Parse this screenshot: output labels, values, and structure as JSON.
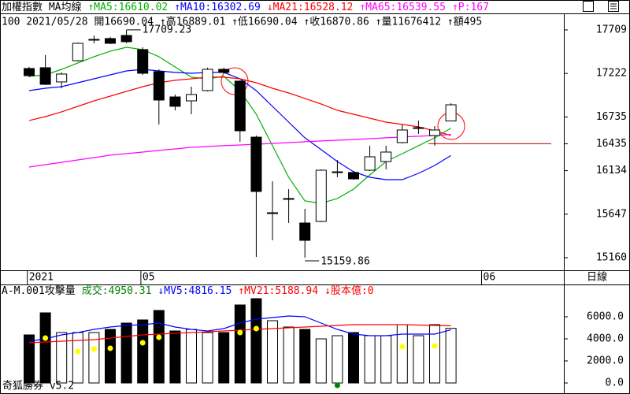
{
  "chart_data": [
    {
      "type": "candlestick",
      "title": "加權指數 MA均線",
      "info": "100 2021/05/28 開16690.04 ↑高16889.01 ↑低16690.04 ↑收16870.86 ↑量11676412 ↑額495",
      "categories": [
        "2021",
        null,
        null,
        null,
        null,
        null,
        null,
        "05",
        null,
        null,
        null,
        null,
        null,
        null,
        null,
        null,
        null,
        null,
        null,
        null,
        null,
        null,
        null,
        null,
        null,
        null,
        null,
        null,
        "06"
      ],
      "period_label": "日線",
      "open": [
        17277,
        17286,
        17127,
        17365,
        17603,
        17612,
        17647,
        17489,
        17242,
        16959,
        16915,
        17030,
        17268,
        17136,
        16509,
        15663,
        15822,
        15548,
        15566,
        16121,
        16113,
        16139,
        16236,
        16448,
        16615,
        16527,
        16690.04,
        null,
        null
      ],
      "high": [
        17294,
        17427,
        17233,
        17568,
        17647,
        17630,
        17709.23,
        17515,
        17268,
        16986,
        17074,
        17286,
        17286,
        17145,
        16527,
        16016,
        15927,
        15707,
        16148,
        16254,
        16130,
        16413,
        16413,
        16651,
        16695,
        16633,
        16889.01,
        null,
        null
      ],
      "low": [
        17180,
        17092,
        17056,
        17356,
        17559,
        17550,
        17559,
        17206,
        16651,
        16809,
        16765,
        17021,
        17224,
        16457,
        15169,
        15354,
        15548,
        15159.86,
        15557,
        16060,
        16033,
        16130,
        16148,
        16439,
        16545,
        16413,
        16690.04,
        null,
        null
      ],
      "close": [
        17197,
        17100,
        17215,
        17559,
        17603,
        17559,
        17577,
        17224,
        16924,
        16854,
        16986,
        17268,
        17233,
        16580,
        15901,
        15663,
        15822,
        15354,
        16139,
        16121,
        16042,
        16289,
        16342,
        16589,
        16615,
        16589,
        16870.86,
        null,
        null
      ],
      "high_label": "17709.23",
      "low_label": "15159.86",
      "series": [
        {
          "name": "↑MA5:16610.02",
          "color": "#00b000",
          "values": [
            17189,
            17206,
            17268,
            17339,
            17409,
            17471,
            17515,
            17489,
            17409,
            17294,
            17180,
            17162,
            17189,
            17030,
            16765,
            16413,
            16060,
            15795,
            15769,
            15822,
            15927,
            16086,
            16236,
            16324,
            16413,
            16501,
            16610.02,
            null,
            null
          ]
        },
        {
          "name": "↑MA10:16302.69",
          "color": "#0000ff",
          "values": [
            17030,
            17056,
            17074,
            17118,
            17162,
            17206,
            17250,
            17268,
            17250,
            17233,
            17224,
            17233,
            17233,
            17162,
            17030,
            16853,
            16677,
            16501,
            16369,
            16236,
            16121,
            16060,
            16033,
            16033,
            16104,
            16192,
            16302.69,
            null,
            null
          ]
        },
        {
          "name": "↓MA21:16528.12",
          "color": "#ff0000",
          "values": [
            16695,
            16739,
            16792,
            16853,
            16915,
            16968,
            17021,
            17074,
            17118,
            17145,
            17162,
            17180,
            17180,
            17162,
            17118,
            17056,
            17003,
            16942,
            16880,
            16809,
            16765,
            16721,
            16677,
            16651,
            16624,
            16580,
            16528.12,
            null,
            null
          ]
        },
        {
          "name": "↑MA65:16539.55",
          "color": "#ff00ff",
          "values": [
            16174,
            16201,
            16227,
            16254,
            16280,
            16307,
            16324,
            16342,
            16360,
            16377,
            16395,
            16404,
            16413,
            16421,
            16430,
            16439,
            16448,
            16457,
            16466,
            16474,
            16483,
            16492,
            16501,
            16510,
            16519,
            16527,
            16539.55,
            null,
            null
          ]
        }
      ],
      "extra_legend": {
        "name": "↑P:167",
        "color": "#ff00ff"
      },
      "reference_line": {
        "value": 16435,
        "color": "#c00000"
      },
      "ylim": [
        15019,
        17885
      ],
      "yticks": [
        17709,
        17222,
        16735,
        16435,
        16134,
        15647,
        15160
      ]
    },
    {
      "type": "bar",
      "title": "A-M.001攻擊量",
      "bar_label": "成交:4950.31",
      "bar_label_color": "#008000",
      "values": [
        4357,
        6357,
        4571,
        4571,
        4571,
        4857,
        5429,
        5714,
        6571,
        4714,
        4857,
        4571,
        4571,
        7071,
        7643,
        5643,
        5071,
        4857,
        4000,
        4286,
        4571,
        4286,
        4286,
        5286,
        4286,
        5286,
        4950.31,
        null,
        null
      ],
      "series": [
        {
          "name": "↓MV5:4816.15",
          "color": "#0000ff",
          "values": [
            3786,
            4000,
            4357,
            4571,
            4857,
            5071,
            5214,
            5286,
            5429,
            5071,
            4857,
            4714,
            4929,
            5429,
            5786,
            5929,
            6071,
            6000,
            5429,
            4857,
            4429,
            4286,
            4286,
            4429,
            4429,
            4429,
            4816.15,
            null,
            null
          ]
        },
        {
          "name": "↑MV21:5188.94",
          "color": "#ff0000",
          "values": [
            3643,
            3714,
            3786,
            3857,
            3929,
            4071,
            4214,
            4357,
            4429,
            4500,
            4571,
            4643,
            4714,
            4786,
            4857,
            4929,
            5000,
            5071,
            5143,
            5214,
            5286,
            5286,
            5286,
            5286,
            5250,
            5214,
            5188.94,
            null,
            null
          ]
        }
      ],
      "extra_legend": {
        "name": "↓股本億:0",
        "color": "#ff0000"
      },
      "dots": {
        "values": [
          null,
          4071,
          null,
          2857,
          3071,
          3143,
          null,
          3643,
          4143,
          null,
          null,
          null,
          null,
          4571,
          4929,
          null,
          null,
          null,
          null,
          -214,
          null,
          null,
          null,
          3286,
          null,
          3357,
          null,
          null,
          null
        ],
        "colors": [
          null,
          "#ffff00",
          null,
          "#ffff00",
          "#ffff00",
          "#ffff00",
          null,
          "#ffff00",
          "#ffff00",
          null,
          null,
          null,
          null,
          "#ffff00",
          "#ffff00",
          null,
          null,
          null,
          null,
          "#008000",
          null,
          null,
          null,
          "#ffff00",
          null,
          "#ffff00",
          null,
          null,
          null
        ]
      },
      "footer": "奇狐勝券 v5.2",
      "ylim": [
        -857,
        8857
      ],
      "yticks": [
        {
          "value": 6000,
          "label": "6000.0"
        },
        {
          "value": 4000,
          "label": "4000.0"
        },
        {
          "value": 2000,
          "label": "2000.0"
        },
        {
          "value": 0,
          "label": "0.0"
        }
      ]
    }
  ]
}
